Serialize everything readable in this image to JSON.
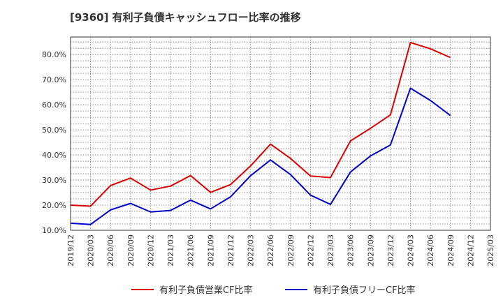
{
  "chart_data": {
    "type": "line",
    "title": "[9360]  有利子負債キャッシュフロー比率の推移",
    "xlabel": "",
    "ylabel": "",
    "x": [
      "2019/12",
      "2020/03",
      "2020/06",
      "2020/09",
      "2020/12",
      "2021/03",
      "2021/06",
      "2021/09",
      "2021/12",
      "2022/03",
      "2022/06",
      "2022/09",
      "2022/12",
      "2023/03",
      "2023/06",
      "2023/09",
      "2023/12",
      "2024/03",
      "2024/06",
      "2024/09"
    ],
    "x_ticks": [
      "2019/12",
      "2020/03",
      "2020/06",
      "2020/09",
      "2020/12",
      "2021/03",
      "2021/06",
      "2021/09",
      "2021/12",
      "2022/03",
      "2022/06",
      "2022/09",
      "2022/12",
      "2023/03",
      "2023/06",
      "2023/09",
      "2023/12",
      "2024/03",
      "2024/06",
      "2024/09",
      "2024/12",
      "2025/03"
    ],
    "y_ticks": [
      "10.0%",
      "20.0%",
      "30.0%",
      "40.0%",
      "50.0%",
      "60.0%",
      "70.0%",
      "80.0%"
    ],
    "ylim": [
      10,
      87
    ],
    "grid": true,
    "legend_position": "bottom",
    "series": [
      {
        "name": "有利子負債営業CF比率",
        "color": "#dd0000",
        "values": [
          20.0,
          19.6,
          27.8,
          30.8,
          26.0,
          27.6,
          31.8,
          25.1,
          28.2,
          35.6,
          44.3,
          38.6,
          31.6,
          31.0,
          45.6,
          50.6,
          56.0,
          84.8,
          82.3,
          78.8
        ]
      },
      {
        "name": "有利子負債フリーCF比率",
        "color": "#0000cc",
        "values": [
          12.8,
          12.3,
          18.1,
          20.7,
          17.3,
          17.9,
          22.0,
          18.5,
          23.3,
          31.7,
          38.0,
          32.2,
          24.0,
          20.3,
          33.2,
          39.6,
          44.0,
          66.6,
          61.7,
          55.7
        ]
      }
    ]
  }
}
